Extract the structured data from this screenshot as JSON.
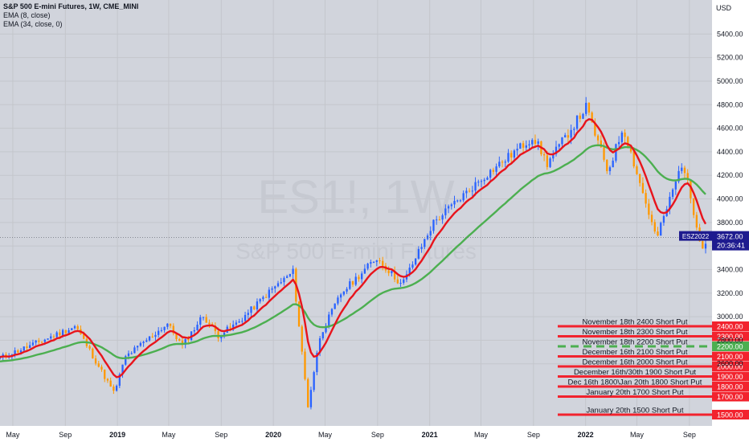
{
  "chart_data": {
    "type": "candlestick",
    "title": "S&P 500 E-mini Futures, 1W, CME_MINI",
    "indicators": [
      {
        "name": "EMA (8, close)",
        "color": "#e8141c"
      },
      {
        "name": "EMA (34, close, 0)",
        "color": "#4caf50"
      }
    ],
    "watermark": {
      "symbol": "ES1!, 1W",
      "name": "S&P 500 E-mini Futures"
    },
    "y_axis": {
      "unit": "USD",
      "ylim": [
        2100,
        5600
      ],
      "ticks": [
        "5400.00",
        "5200.00",
        "5000.00",
        "4800.00",
        "4600.00",
        "4400.00",
        "4200.00",
        "4000.00",
        "3800.00",
        "3600.00",
        "3400.00",
        "3200.00",
        "3000.00",
        "2800.00",
        "2600.00"
      ]
    },
    "x_axis": {
      "tick_labels": [
        {
          "label": "May",
          "date": "2018-05",
          "bold": false
        },
        {
          "label": "Sep",
          "date": "2018-09",
          "bold": false
        },
        {
          "label": "2019",
          "date": "2019-01",
          "bold": true
        },
        {
          "label": "May",
          "date": "2019-05",
          "bold": false
        },
        {
          "label": "Sep",
          "date": "2019-09",
          "bold": false
        },
        {
          "label": "2020",
          "date": "2020-01",
          "bold": true
        },
        {
          "label": "May",
          "date": "2020-05",
          "bold": false
        },
        {
          "label": "Sep",
          "date": "2020-09",
          "bold": false
        },
        {
          "label": "2021",
          "date": "2021-01",
          "bold": true
        },
        {
          "label": "May",
          "date": "2021-05",
          "bold": false
        },
        {
          "label": "Sep",
          "date": "2021-09",
          "bold": false
        },
        {
          "label": "2022",
          "date": "2022-01",
          "bold": true
        },
        {
          "label": "May",
          "date": "2022-05",
          "bold": false
        },
        {
          "label": "Sep",
          "date": "2022-09",
          "bold": false
        }
      ]
    },
    "price_anchors": [
      {
        "date": "2018-04-01",
        "price": 2650
      },
      {
        "date": "2018-06-15",
        "price": 2760
      },
      {
        "date": "2018-09-25",
        "price": 2920
      },
      {
        "date": "2018-10-30",
        "price": 2700
      },
      {
        "date": "2018-12-24",
        "price": 2350
      },
      {
        "date": "2019-01-20",
        "price": 2660
      },
      {
        "date": "2019-04-28",
        "price": 2940
      },
      {
        "date": "2019-06-02",
        "price": 2750
      },
      {
        "date": "2019-07-20",
        "price": 3010
      },
      {
        "date": "2019-08-25",
        "price": 2840
      },
      {
        "date": "2019-10-10",
        "price": 2950
      },
      {
        "date": "2019-12-28",
        "price": 3230
      },
      {
        "date": "2020-02-16",
        "price": 3380
      },
      {
        "date": "2020-03-22",
        "price": 2240
      },
      {
        "date": "2020-04-20",
        "price": 2850
      },
      {
        "date": "2020-06-08",
        "price": 3200
      },
      {
        "date": "2020-08-30",
        "price": 3500
      },
      {
        "date": "2020-10-28",
        "price": 3270
      },
      {
        "date": "2021-01-10",
        "price": 3800
      },
      {
        "date": "2021-05-05",
        "price": 4180
      },
      {
        "date": "2021-09-01",
        "price": 4530
      },
      {
        "date": "2021-10-03",
        "price": 4300
      },
      {
        "date": "2022-01-02",
        "price": 4780
      },
      {
        "date": "2022-02-22",
        "price": 4230
      },
      {
        "date": "2022-03-30",
        "price": 4610
      },
      {
        "date": "2022-06-16",
        "price": 3660
      },
      {
        "date": "2022-08-16",
        "price": 4320
      },
      {
        "date": "2022-09-30",
        "price": 3590
      },
      {
        "date": "2022-10-14",
        "price": 3640
      }
    ],
    "last_price_label": {
      "symbol": "ESZ2022",
      "price": "3672.00",
      "countdown": "20:36:41"
    },
    "annotations": [
      {
        "text": "November 18th 2400 Short Put",
        "price": 2400,
        "price_label": "2400.00",
        "color": "#f2232e"
      },
      {
        "text": "November 18th 2300 Short Put",
        "price": 2300,
        "price_label": "2300.00",
        "color": "#f2232e"
      },
      {
        "text": "November 18th 2200 Short Put",
        "price": 2200,
        "price_label": "2200.00",
        "color": "#4caf50",
        "dashed": true
      },
      {
        "text": "December 16th 2100 Short Put",
        "price": 2100,
        "price_label": "2100.00",
        "color": "#f2232e"
      },
      {
        "text": "December 16th 2000 Short Put",
        "price": 2000,
        "price_label": "2000.00",
        "color": "#f2232e"
      },
      {
        "text": "December 16th/30th 1900 Short Put",
        "price": 1900,
        "price_label": "1900.00",
        "color": "#f2232e"
      },
      {
        "text": "Dec 16th 1800\\Jan 20th 1800 Short Put",
        "price": 1800,
        "price_label": "1800.00",
        "color": "#f2232e"
      },
      {
        "text": "January 20th 1700 Short Put",
        "price": 1700,
        "price_label": "1700.00",
        "color": "#f2232e"
      },
      {
        "text": "January 20th 1500 Short Put",
        "price": 1500,
        "price_label": "1500.00",
        "color": "#f2232e"
      }
    ],
    "colors": {
      "up": "#2962ff",
      "down": "#ff9800",
      "ema_fast": "#e8141c",
      "ema_slow": "#4caf50",
      "grid": "#c4c6cc",
      "background": "#d1d4dc"
    }
  }
}
